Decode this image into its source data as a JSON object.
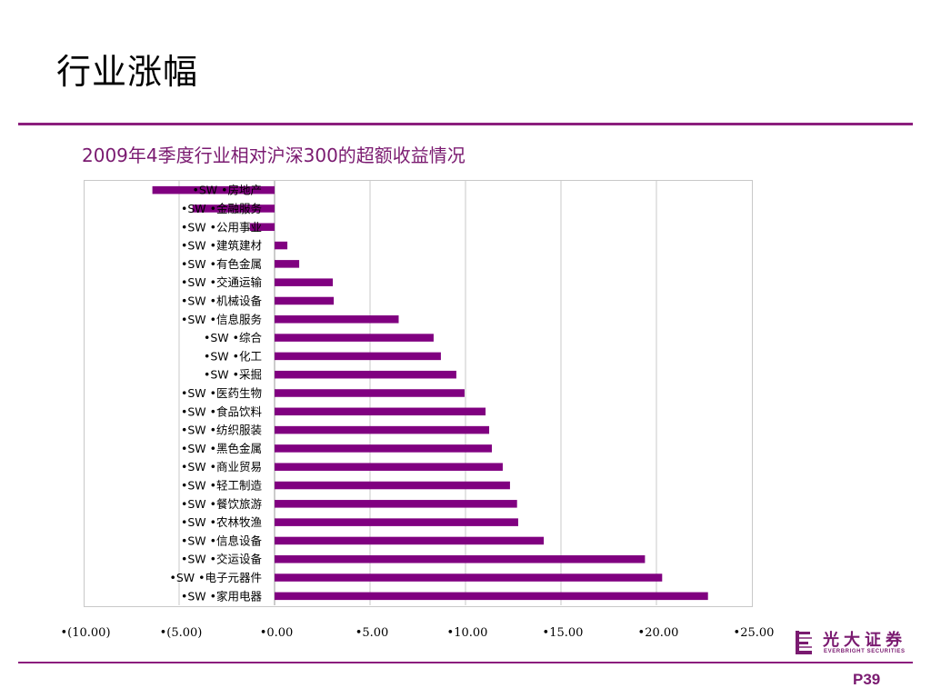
{
  "slide": {
    "title": "行业涨幅",
    "page_number": "P39",
    "accent_color": "#8b1e7d"
  },
  "logo": {
    "name_cn": "光大证券",
    "name_en": "EVERBRIGHT SECURITIES",
    "icon": "everbright-logo-icon"
  },
  "chart_data": {
    "type": "bar",
    "orientation": "horizontal",
    "title": "2009年4季度行业相对沪深300的超额收益情况",
    "xlabel": "",
    "ylabel": "",
    "xlim": [
      -10,
      25
    ],
    "x_ticks": [
      -10,
      -5,
      0,
      5,
      10,
      15,
      20,
      25
    ],
    "x_tick_labels": [
      "•(10.00)",
      "•(5.00)",
      "•0.00",
      "•5.00",
      "•10.00",
      "•15.00",
      "•20.00",
      "•25.00"
    ],
    "grid": "vertical",
    "legend": "none",
    "bar_color": "#800080",
    "categories": [
      "•SW •房地产",
      "•SW •金融服务",
      "•SW •公用事业",
      "•SW •建筑建材",
      "•SW •有色金属",
      "•SW •交通运输",
      "•SW •机械设备",
      "•SW •信息服务",
      "•SW •综合",
      "•SW •化工",
      "•SW •采掘",
      "•SW •医药生物",
      "•SW •食品饮料",
      "•SW •纺织服装",
      "•SW •黑色金属",
      "•SW •商业贸易",
      "•SW •轻工制造",
      "•SW •餐饮旅游",
      "•SW •农林牧渔",
      "•SW •信息设备",
      "•SW •交运设备",
      "•SW •电子元器件",
      "•SW •家用电器"
    ],
    "values": [
      -6.4,
      -4.3,
      -1.3,
      0.67,
      1.29,
      3.05,
      3.1,
      6.5,
      8.33,
      8.71,
      9.52,
      9.95,
      11.05,
      11.24,
      11.38,
      11.95,
      12.33,
      12.7,
      12.76,
      14.1,
      19.4,
      20.3,
      22.7
    ]
  }
}
